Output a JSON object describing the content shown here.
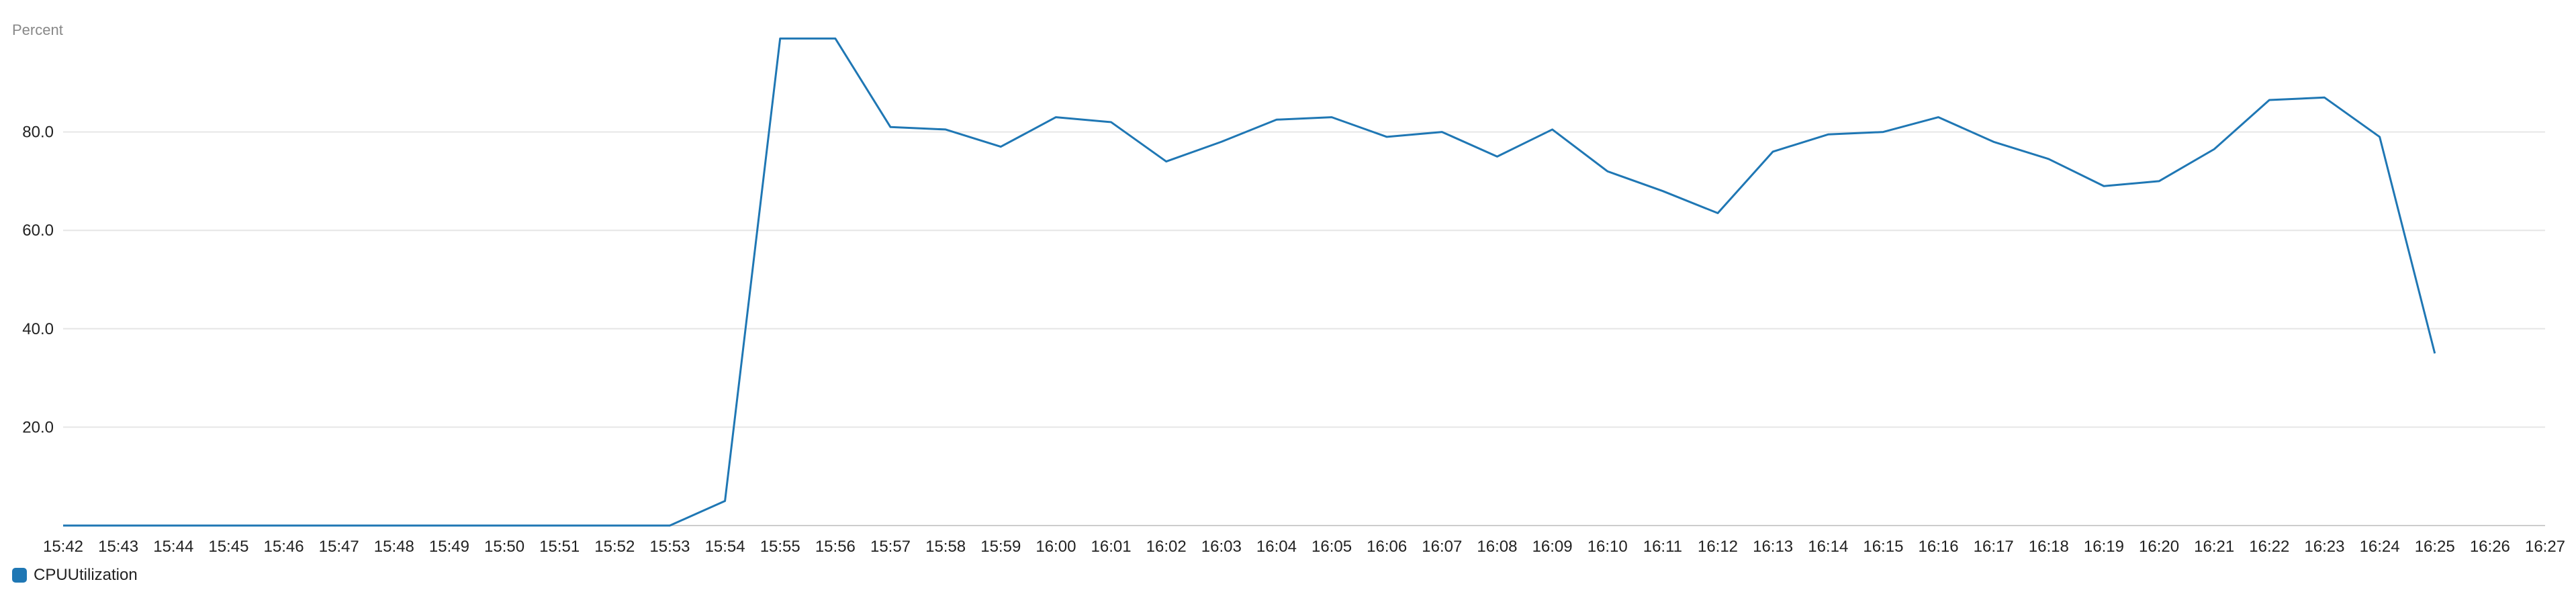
{
  "chart_data": {
    "type": "line",
    "ylabel": "Percent",
    "ylim": [
      0,
      100
    ],
    "yticks": [
      "20.0",
      "40.0",
      "60.0",
      "80.0"
    ],
    "grid": true,
    "legend_position": "bottom-left",
    "x": [
      "15:42",
      "15:43",
      "15:44",
      "15:45",
      "15:46",
      "15:47",
      "15:48",
      "15:49",
      "15:50",
      "15:51",
      "15:52",
      "15:53",
      "15:54",
      "15:55",
      "15:56",
      "15:57",
      "15:58",
      "15:59",
      "16:00",
      "16:01",
      "16:02",
      "16:03",
      "16:04",
      "16:05",
      "16:06",
      "16:07",
      "16:08",
      "16:09",
      "16:10",
      "16:11",
      "16:12",
      "16:13",
      "16:14",
      "16:15",
      "16:16",
      "16:17",
      "16:18",
      "16:19",
      "16:20",
      "16:21",
      "16:22",
      "16:23",
      "16:24",
      "16:25",
      "16:26",
      "16:27"
    ],
    "series": [
      {
        "name": "CPUUtilization",
        "color": "#1f77b4",
        "values": [
          0,
          0,
          0,
          0,
          0,
          0,
          0,
          0,
          0,
          0,
          0,
          0,
          5,
          99,
          99,
          81,
          80.5,
          77,
          83,
          82,
          74,
          78,
          82.5,
          83,
          79,
          80,
          75,
          80.5,
          72,
          68,
          63.5,
          76,
          79.5,
          80,
          83,
          78,
          74.5,
          69,
          70,
          76.5,
          86.5,
          87,
          79,
          35,
          null,
          null
        ]
      }
    ]
  }
}
